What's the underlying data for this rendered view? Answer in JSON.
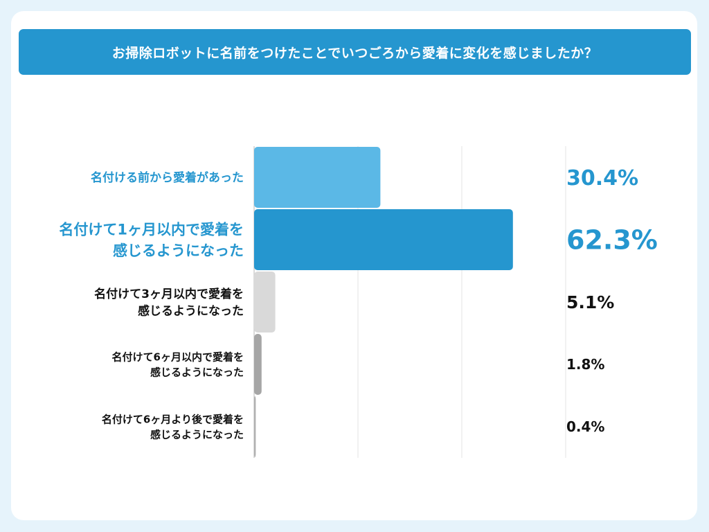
{
  "chart_data": {
    "type": "bar",
    "orientation": "horizontal",
    "title": "お掃除ロボットに名前をつけたことでいつごろから愛着に変化を感じましたか？",
    "categories": [
      [
        "名付ける前から愛着があった"
      ],
      [
        "名付けて1ヶ月以内で愛着を",
        "感じるようになった"
      ],
      [
        "名付けて3ヶ月以内で愛着を",
        "感じるようになった"
      ],
      [
        "名付けて6ヶ月以内で愛着を",
        "感じるようになった"
      ],
      [
        "名付けて6ヶ月より後で愛着を",
        "感じるようになった"
      ]
    ],
    "values": [
      30.4,
      62.3,
      5.1,
      1.8,
      0.4
    ],
    "value_labels": [
      "30.4%",
      "62.3%",
      "5.1%",
      "1.8%",
      "0.4%"
    ],
    "xlim": [
      0,
      75
    ],
    "grid": true,
    "colors": {
      "bars": [
        "#5bb8e6",
        "#2596cf",
        "#d9d9d9",
        "#a6a6a6",
        "#b0b0b0"
      ],
      "labels": [
        "#2596cf",
        "#2596cf",
        "#111111",
        "#111111",
        "#111111"
      ],
      "values": [
        "#2596cf",
        "#2596cf",
        "#111111",
        "#111111",
        "#111111"
      ],
      "gridline": "#e3e3e3",
      "axis": "#cfcfcf"
    }
  }
}
